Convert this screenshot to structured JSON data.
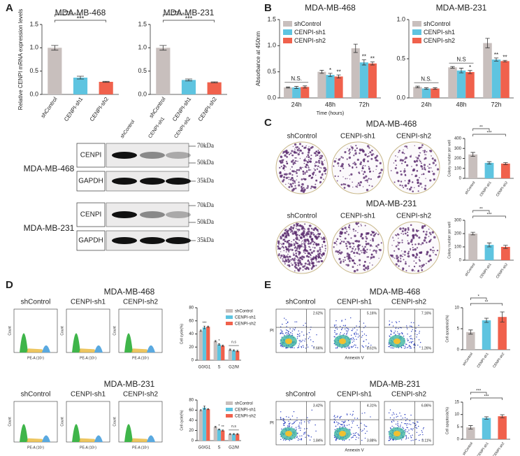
{
  "panel_labels": [
    "A",
    "B",
    "C",
    "D",
    "E"
  ],
  "chart_data": [
    {
      "type": "bar",
      "title": "MDA-MB-468",
      "y_label": "Relative CENPI mRNA expression levels",
      "categories": [
        "shControl",
        "CENPI-sh1",
        "CENPI-sh2"
      ],
      "values": [
        1.0,
        0.36,
        0.27
      ],
      "errors": [
        0.05,
        0.03,
        0.01
      ],
      "colors": [
        "#c8bfbd",
        "#5ec4e0",
        "#f0614c"
      ],
      "ylim": [
        0,
        1.5
      ],
      "yticks": [
        {
          "value": 0,
          "label": "0.0"
        },
        0.5,
        {
          "value": 1,
          "label": "1.0"
        },
        1.5
      ],
      "annotations": [
        "***",
        "***"
      ]
    },
    {
      "type": "bar",
      "title": "MDA-MB-231",
      "categories": [
        "shControl",
        "CENPI-sh1",
        "CENPI-sh2"
      ],
      "values": [
        1.0,
        0.31,
        0.26
      ],
      "errors": [
        0.05,
        0.02,
        0.01
      ],
      "colors": [
        "#c8bfbd",
        "#5ec4e0",
        "#f0614c"
      ],
      "ylim": [
        0,
        1.5
      ],
      "yticks": [
        {
          "value": 0,
          "label": "0.0"
        },
        0.5,
        {
          "value": 1,
          "label": "1.0"
        },
        1.5
      ],
      "annotations": [
        "***",
        "***"
      ]
    },
    {
      "type": "grouped_bar",
      "title": "MDA-MB-468",
      "y_label": "Absorbance at 450nm",
      "x_label": "Time (hours)",
      "categories": [
        "24h",
        "48h",
        "72h"
      ],
      "legend": "upper left",
      "series": [
        {
          "name": "shControl",
          "color": "#c8bfbd",
          "values": [
            0.2,
            0.5,
            0.95
          ],
          "errors": [
            0.01,
            0.03,
            0.08
          ],
          "annotations": [
            null,
            null,
            null
          ]
        },
        {
          "name": "CENPI-sh1",
          "color": "#5ec4e0",
          "values": [
            0.2,
            0.44,
            0.68
          ],
          "errors": [
            0.02,
            0.03,
            0.05
          ],
          "annotations": [
            null,
            "*",
            "**"
          ]
        },
        {
          "name": "CENPI-sh2",
          "color": "#f0614c",
          "values": [
            0.21,
            0.41,
            0.66
          ],
          "errors": [
            0.02,
            0.03,
            0.03
          ],
          "annotations": [
            null,
            "**",
            "**"
          ]
        }
      ],
      "group_annotations": [
        "N.S.",
        null,
        null
      ],
      "ylim": [
        0,
        1.5
      ],
      "yticks": [
        {
          "value": 0,
          "label": "0.0"
        },
        0.5,
        {
          "value": 1,
          "label": "1.0"
        },
        1.5
      ]
    },
    {
      "type": "grouped_bar",
      "title": "MDA-MB-231",
      "categories": [
        "24h",
        "48h",
        "72h"
      ],
      "legend": "upper left",
      "series": [
        {
          "name": "shControl",
          "color": "#c8bfbd",
          "values": [
            0.14,
            0.39,
            0.7
          ],
          "errors": [
            0.01,
            0.01,
            0.06
          ],
          "annotations": [
            null,
            null,
            null
          ]
        },
        {
          "name": "CENPI-sh1",
          "color": "#5ec4e0",
          "values": [
            0.12,
            0.35,
            0.49
          ],
          "errors": [
            0.01,
            0.03,
            0.02
          ],
          "annotations": [
            null,
            null,
            "**"
          ]
        },
        {
          "name": "CENPI-sh2",
          "color": "#f0614c",
          "values": [
            0.12,
            0.33,
            0.47
          ],
          "errors": [
            0.01,
            0.02,
            0.01
          ],
          "annotations": [
            null,
            "*",
            "**"
          ]
        }
      ],
      "group_annotations": [
        "N.S.",
        "N.S",
        null
      ],
      "ylim": [
        0,
        1.0
      ],
      "yticks": [
        {
          "value": 0,
          "label": "0.0"
        },
        0.5,
        {
          "value": 1,
          "label": "1.0"
        }
      ]
    },
    {
      "type": "bar",
      "y_label": "Colony number per well",
      "categories": [
        "shControl",
        "CENPI-sh1",
        "CENPI-sh2"
      ],
      "values": [
        240,
        155,
        148
      ],
      "errors": [
        20,
        12,
        10
      ],
      "colors": [
        "#c8bfbd",
        "#5ec4e0",
        "#f0614c"
      ],
      "ylim": [
        0,
        400
      ],
      "yticks": [
        0,
        100,
        200,
        300,
        400
      ],
      "annotations": [
        "**",
        "***"
      ]
    },
    {
      "type": "bar",
      "y_label": "Colony number per well",
      "categories": [
        "shControl",
        "CENPI-sh1",
        "CENPI-sh2"
      ],
      "values": [
        200,
        115,
        100
      ],
      "errors": [
        10,
        15,
        12
      ],
      "colors": [
        "#c8bfbd",
        "#5ec4e0",
        "#f0614c"
      ],
      "ylim": [
        0,
        300
      ],
      "yticks": [
        0,
        100,
        200,
        300
      ],
      "annotations": [
        "**",
        "***"
      ]
    },
    {
      "type": "grouped_bar",
      "y_label": "Cell cycle(%)",
      "categories": [
        "G0/G1",
        "S",
        "G2/M"
      ],
      "legend": "upper right",
      "series": [
        {
          "name": "shControl",
          "color": "#c8bfbd",
          "values": [
            45,
            29,
            16
          ],
          "errors": [
            1,
            1,
            1
          ],
          "annotations": [
            null,
            null,
            null
          ]
        },
        {
          "name": "CENPI-sh1",
          "color": "#5ec4e0",
          "values": [
            50,
            24,
            15
          ],
          "errors": [
            2,
            1,
            1
          ],
          "annotations": [
            "***",
            "*",
            null
          ]
        },
        {
          "name": "CENPI-sh2",
          "color": "#f0614c",
          "values": [
            51,
            22,
            14
          ],
          "errors": [
            1,
            1,
            1
          ],
          "annotations": [
            null,
            null,
            null
          ]
        }
      ],
      "group_annotations": [
        null,
        null,
        "n.s"
      ],
      "ylim": [
        0,
        80
      ],
      "yticks": [
        0,
        20,
        40,
        60,
        80
      ]
    },
    {
      "type": "grouped_bar",
      "y_label": "Cell cycle(%)",
      "categories": [
        "G0/G1",
        "S",
        "G2/M"
      ],
      "legend": "upper right",
      "series": [
        {
          "name": "shControl",
          "color": "#c8bfbd",
          "values": [
            60,
            27,
            13
          ],
          "errors": [
            1,
            1,
            1
          ],
          "annotations": [
            null,
            null,
            null
          ]
        },
        {
          "name": "CENPI-sh1",
          "color": "#5ec4e0",
          "values": [
            65,
            22,
            13
          ],
          "errors": [
            3,
            1,
            1
          ],
          "annotations": [
            null,
            "*",
            null
          ]
        },
        {
          "name": "CENPI-sh2",
          "color": "#f0614c",
          "values": [
            62,
            20,
            13
          ],
          "errors": [
            1,
            1,
            1
          ],
          "annotations": [
            null,
            "**",
            null
          ]
        }
      ],
      "group_annotations": [
        null,
        null,
        "n.s"
      ],
      "ylim": [
        0,
        80
      ],
      "yticks": [
        0,
        20,
        40,
        60,
        80
      ]
    },
    {
      "type": "bar",
      "y_label": "Cell apoptosis(%)",
      "categories": [
        "shControl",
        "CENPI-sh1",
        "CENPI-sh2"
      ],
      "values": [
        4.2,
        7.0,
        7.8
      ],
      "errors": [
        0.5,
        0.5,
        1.2
      ],
      "colors": [
        "#c8bfbd",
        "#5ec4e0",
        "#f0614c"
      ],
      "ylim": [
        0,
        10
      ],
      "yticks": [
        0,
        5,
        10
      ],
      "annotations": [
        "*",
        "**"
      ]
    },
    {
      "type": "bar",
      "y_label": "Cell apoptosis(%)",
      "categories": [
        "shControl",
        "CENPI-sh1",
        "CENPI-sh2"
      ],
      "values": [
        4.8,
        8.6,
        9.3
      ],
      "errors": [
        0.7,
        0.5,
        0.6
      ],
      "colors": [
        "#c8bfbd",
        "#5ec4e0",
        "#f0614c"
      ],
      "ylim": [
        0,
        15
      ],
      "yticks": [
        0,
        5,
        10,
        15
      ],
      "annotations": [
        "***",
        "***"
      ]
    }
  ],
  "western_blot": {
    "lanes": [
      "shControl",
      "CENPI-sh1",
      "CENPI-sh2"
    ],
    "groups": [
      {
        "cell_line": "MDA-MB-468",
        "bands": [
          "CENPI",
          "GAPDH"
        ]
      },
      {
        "cell_line": "MDA-MB-231",
        "bands": [
          "CENPI",
          "GAPDH"
        ]
      }
    ],
    "markers": [
      "70kDa",
      "50kDa",
      "35kDa"
    ]
  },
  "colony": {
    "titles": [
      "MDA-MB-468",
      "MDA-MB-231"
    ],
    "labels": [
      "shControl",
      "CENPI-sh1",
      "CENPI-sh2"
    ]
  },
  "cell_cycle": {
    "titles": [
      "MDA-MB-468",
      "MDA-MB-231"
    ],
    "labels": [
      "shControl",
      "CENPI-sh1",
      "CENPI-sh2"
    ],
    "y_label": "Count",
    "x_label": "PE-A (10⁵)"
  },
  "apoptosis": {
    "titles": [
      "MDA-MB-468",
      "MDA-MB-231"
    ],
    "labels": [
      "shControl",
      "CENPI-sh1",
      "CENPI-sh2"
    ],
    "y_label": "PI",
    "x_label": "Annexin V",
    "quadrants": [
      [
        [
          "2.62%",
          "7.66%"
        ],
        [
          "5.16%",
          "8.61%"
        ],
        [
          "7.16%",
          "1.26%"
        ]
      ],
      [
        [
          "3.42%",
          "1.84%"
        ],
        [
          "4.31%",
          "3.88%"
        ],
        [
          "6.86%",
          "3.11%"
        ]
      ]
    ]
  }
}
